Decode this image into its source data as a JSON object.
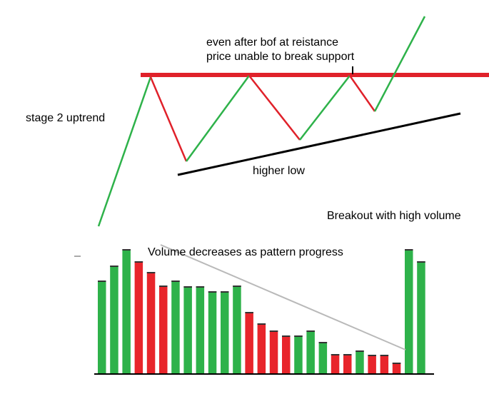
{
  "annotations": {
    "breakout_note_line1": "even after bof at reistance",
    "breakout_note_line2": "price unable to break support",
    "stage_label": "stage 2 uptrend",
    "higher_low_label": "higher low",
    "breakout_volume_label": "Breakout with high volume",
    "volume_trend_label": "Volume decreases as pattern progress"
  },
  "colors": {
    "resistance": "#e0212a",
    "up_leg": "#2eb24a",
    "down_leg": "#e0212a",
    "support": "#000000",
    "volume_trend": "#b9b9b9",
    "volume_up": "#2eb24a",
    "volume_down": "#e8252b"
  },
  "chart_data": {
    "type": "bar",
    "description_free": true,
    "bars": [
      {
        "value": 130,
        "direction": "up"
      },
      {
        "value": 151,
        "direction": "up"
      },
      {
        "value": 174,
        "direction": "up"
      },
      {
        "value": 157,
        "direction": "down"
      },
      {
        "value": 142,
        "direction": "down"
      },
      {
        "value": 123,
        "direction": "down"
      },
      {
        "value": 130,
        "direction": "up"
      },
      {
        "value": 122,
        "direction": "up"
      },
      {
        "value": 122,
        "direction": "up"
      },
      {
        "value": 115,
        "direction": "up"
      },
      {
        "value": 115,
        "direction": "up"
      },
      {
        "value": 123,
        "direction": "up"
      },
      {
        "value": 86,
        "direction": "down"
      },
      {
        "value": 70,
        "direction": "down"
      },
      {
        "value": 60,
        "direction": "down"
      },
      {
        "value": 53,
        "direction": "down"
      },
      {
        "value": 53,
        "direction": "up"
      },
      {
        "value": 60,
        "direction": "up"
      },
      {
        "value": 44,
        "direction": "up"
      },
      {
        "value": 27,
        "direction": "down"
      },
      {
        "value": 27,
        "direction": "down"
      },
      {
        "value": 32,
        "direction": "up"
      },
      {
        "value": 26,
        "direction": "down"
      },
      {
        "value": 26,
        "direction": "down"
      },
      {
        "value": 15,
        "direction": "down"
      },
      {
        "value": 174,
        "direction": "up"
      },
      {
        "value": 157,
        "direction": "up"
      }
    ]
  }
}
